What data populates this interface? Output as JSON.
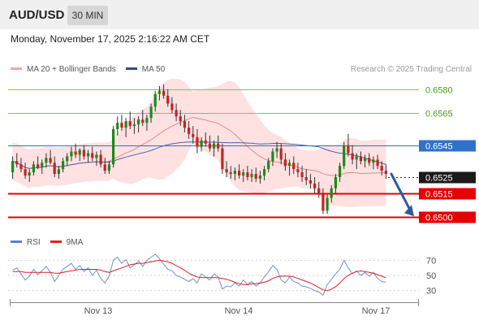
{
  "header": {
    "pair": "AUD/USD",
    "timeframe": "30 MIN",
    "timestamp": "Monday, November 17, 2025 2:16:22 AM CET"
  },
  "legend": {
    "bollinger_label": "MA 20 + Bollinger Bands",
    "ma50_label": "MA 50",
    "credit": "Research © 2025 Trading Central"
  },
  "rsi_legend": {
    "rsi_label": "RSI",
    "ma_label": "9MA"
  },
  "colors": {
    "candle_up": "#1a8a1a",
    "candle_down": "#cc1f1f",
    "bollinger_band": "#ffdcdc",
    "ma20": "#e08a8a",
    "ma50": "#4a63a8",
    "support": "#e60000",
    "pivot": "#2f72c9",
    "resistance": "#8dc24b",
    "last_price": "#1a1a1a",
    "forecast_arrow": "#2a5aa0",
    "rsi_line": "#6f8fd8",
    "rsi_ma": "#e02020"
  },
  "chart_data": [
    {
      "type": "candlestick",
      "title": "AUD/USD 30 MIN",
      "ylim": [
        0.6494,
        0.6586
      ],
      "x_tick_labels": [
        "Nov 13",
        "Nov 14",
        "Nov 17"
      ],
      "price_levels": [
        {
          "value": 0.658,
          "label": "0.6580",
          "kind": "resistance"
        },
        {
          "value": 0.6565,
          "label": "0.6565",
          "kind": "resistance"
        },
        {
          "value": 0.6545,
          "label": "0.6545",
          "kind": "pivot"
        },
        {
          "value": 0.6525,
          "label": "0.6525",
          "kind": "last"
        },
        {
          "value": 0.6515,
          "label": "0.6515",
          "kind": "support"
        },
        {
          "value": 0.65,
          "label": "0.6500",
          "kind": "support"
        }
      ],
      "forecast": {
        "direction": "down",
        "from": 0.6527,
        "to": 0.65
      },
      "ohlc": [
        [
          0.6528,
          0.6538,
          0.6524,
          0.6535
        ],
        [
          0.6535,
          0.654,
          0.6531,
          0.6533
        ],
        [
          0.6533,
          0.6537,
          0.6528,
          0.653
        ],
        [
          0.653,
          0.6534,
          0.6524,
          0.6526
        ],
        [
          0.6526,
          0.653,
          0.6522,
          0.6528
        ],
        [
          0.6528,
          0.6535,
          0.6526,
          0.6533
        ],
        [
          0.6533,
          0.6538,
          0.653,
          0.6531
        ],
        [
          0.6531,
          0.6536,
          0.6527,
          0.6534
        ],
        [
          0.6534,
          0.654,
          0.6531,
          0.6537
        ],
        [
          0.6537,
          0.6542,
          0.6533,
          0.6534
        ],
        [
          0.6534,
          0.6538,
          0.6525,
          0.6527
        ],
        [
          0.6527,
          0.6532,
          0.6524,
          0.653
        ],
        [
          0.653,
          0.6537,
          0.6528,
          0.6535
        ],
        [
          0.6535,
          0.654,
          0.6532,
          0.6538
        ],
        [
          0.6538,
          0.6544,
          0.6535,
          0.6541
        ],
        [
          0.6541,
          0.6546,
          0.6537,
          0.6539
        ],
        [
          0.6539,
          0.6543,
          0.6535,
          0.6542
        ],
        [
          0.6542,
          0.6545,
          0.6536,
          0.6538
        ],
        [
          0.6538,
          0.6542,
          0.6534,
          0.654
        ],
        [
          0.654,
          0.6544,
          0.6535,
          0.6537
        ],
        [
          0.6537,
          0.6541,
          0.6532,
          0.6539
        ],
        [
          0.6539,
          0.6542,
          0.6531,
          0.6533
        ],
        [
          0.6533,
          0.6537,
          0.6527,
          0.6529
        ],
        [
          0.6529,
          0.6535,
          0.6527,
          0.6533
        ],
        [
          0.6533,
          0.6557,
          0.6531,
          0.6555
        ],
        [
          0.6555,
          0.6563,
          0.6551,
          0.6559
        ],
        [
          0.6559,
          0.6564,
          0.6554,
          0.6556
        ],
        [
          0.6556,
          0.6562,
          0.655,
          0.656
        ],
        [
          0.656,
          0.6566,
          0.6555,
          0.6557
        ],
        [
          0.6557,
          0.6562,
          0.6552,
          0.6558
        ],
        [
          0.6558,
          0.6563,
          0.6553,
          0.6561
        ],
        [
          0.6561,
          0.6567,
          0.6557,
          0.6559
        ],
        [
          0.6559,
          0.6564,
          0.6554,
          0.6562
        ],
        [
          0.6562,
          0.6571,
          0.6559,
          0.6569
        ],
        [
          0.6569,
          0.6579,
          0.6566,
          0.6577
        ],
        [
          0.6577,
          0.6582,
          0.6573,
          0.6579
        ],
        [
          0.6579,
          0.6583,
          0.6574,
          0.6576
        ],
        [
          0.6576,
          0.658,
          0.6569,
          0.6571
        ],
        [
          0.6571,
          0.6575,
          0.6565,
          0.6567
        ],
        [
          0.6567,
          0.6571,
          0.656,
          0.6563
        ],
        [
          0.6563,
          0.6567,
          0.6557,
          0.656
        ],
        [
          0.656,
          0.6564,
          0.6553,
          0.6556
        ],
        [
          0.6556,
          0.656,
          0.6549,
          0.6552
        ],
        [
          0.6552,
          0.6557,
          0.6546,
          0.655
        ],
        [
          0.655,
          0.6555,
          0.654,
          0.6544
        ],
        [
          0.6544,
          0.655,
          0.6541,
          0.6548
        ],
        [
          0.6548,
          0.6553,
          0.6544,
          0.6546
        ],
        [
          0.6546,
          0.6551,
          0.6541,
          0.6543
        ],
        [
          0.6543,
          0.6548,
          0.6538,
          0.6546
        ],
        [
          0.6546,
          0.6551,
          0.6541,
          0.6543
        ],
        [
          0.6543,
          0.6546,
          0.6527,
          0.653
        ],
        [
          0.653,
          0.6535,
          0.6525,
          0.6528
        ],
        [
          0.6528,
          0.6532,
          0.6524,
          0.6527
        ],
        [
          0.6527,
          0.6531,
          0.6523,
          0.6529
        ],
        [
          0.6529,
          0.6533,
          0.6524,
          0.6526
        ],
        [
          0.6526,
          0.653,
          0.6522,
          0.6528
        ],
        [
          0.6528,
          0.6532,
          0.6523,
          0.6525
        ],
        [
          0.6525,
          0.653,
          0.6522,
          0.6527
        ],
        [
          0.6527,
          0.6531,
          0.6522,
          0.6524
        ],
        [
          0.6524,
          0.6529,
          0.6521,
          0.6526
        ],
        [
          0.6526,
          0.6532,
          0.6523,
          0.653
        ],
        [
          0.653,
          0.6537,
          0.6528,
          0.6535
        ],
        [
          0.6535,
          0.6543,
          0.6532,
          0.6541
        ],
        [
          0.6541,
          0.6547,
          0.6537,
          0.6543
        ],
        [
          0.6543,
          0.6546,
          0.6533,
          0.6536
        ],
        [
          0.6536,
          0.654,
          0.6529,
          0.6532
        ],
        [
          0.6532,
          0.6536,
          0.6526,
          0.6534
        ],
        [
          0.6534,
          0.6538,
          0.6527,
          0.653
        ],
        [
          0.653,
          0.6534,
          0.6525,
          0.6528
        ],
        [
          0.6528,
          0.6532,
          0.6522,
          0.6525
        ],
        [
          0.6525,
          0.653,
          0.652,
          0.6523
        ],
        [
          0.6523,
          0.6527,
          0.6518,
          0.6521
        ],
        [
          0.6521,
          0.6525,
          0.6515,
          0.6518
        ],
        [
          0.6518,
          0.6522,
          0.6512,
          0.6514
        ],
        [
          0.6514,
          0.6518,
          0.6502,
          0.6504
        ],
        [
          0.6504,
          0.6514,
          0.6502,
          0.6512
        ],
        [
          0.6512,
          0.652,
          0.6509,
          0.6518
        ],
        [
          0.6518,
          0.6527,
          0.6515,
          0.6525
        ],
        [
          0.6525,
          0.6534,
          0.6522,
          0.6532
        ],
        [
          0.6532,
          0.6547,
          0.653,
          0.6545
        ],
        [
          0.6545,
          0.6552,
          0.6538,
          0.654
        ],
        [
          0.654,
          0.6545,
          0.6533,
          0.6536
        ],
        [
          0.6536,
          0.654,
          0.653,
          0.6538
        ],
        [
          0.6538,
          0.6541,
          0.6533,
          0.6535
        ],
        [
          0.6535,
          0.6539,
          0.6531,
          0.6537
        ],
        [
          0.6537,
          0.654,
          0.6532,
          0.6534
        ],
        [
          0.6534,
          0.6538,
          0.653,
          0.6536
        ],
        [
          0.6536,
          0.6539,
          0.653,
          0.6532
        ],
        [
          0.6532,
          0.6535,
          0.6526,
          0.6529
        ],
        [
          0.6529,
          0.6533,
          0.6524,
          0.6527
        ]
      ]
    },
    {
      "type": "line",
      "title": "RSI",
      "ylim": [
        20,
        80
      ],
      "y_tick_labels": [
        "70",
        "50",
        "30"
      ],
      "series": [
        {
          "name": "RSI",
          "values": [
            57,
            60,
            52,
            44,
            49,
            58,
            51,
            56,
            62,
            54,
            42,
            50,
            58,
            62,
            66,
            58,
            63,
            55,
            60,
            50,
            57,
            46,
            40,
            49,
            70,
            74,
            66,
            71,
            60,
            64,
            69,
            62,
            70,
            74,
            78,
            72,
            65,
            58,
            56,
            50,
            48,
            45,
            42,
            46,
            40,
            52,
            48,
            44,
            52,
            48,
            32,
            36,
            35,
            40,
            36,
            44,
            38,
            42,
            36,
            40,
            48,
            55,
            63,
            58,
            44,
            40,
            48,
            42,
            40,
            36,
            35,
            33,
            30,
            28,
            24,
            38,
            45,
            52,
            58,
            70,
            60,
            52,
            56,
            50,
            54,
            49,
            54,
            46,
            42,
            41
          ]
        },
        {
          "name": "9MA",
          "values": [
            55,
            55,
            55,
            54,
            54,
            54,
            54,
            54,
            54,
            54,
            53,
            53,
            54,
            55,
            56,
            57,
            58,
            58,
            58,
            58,
            58,
            57,
            55,
            54,
            56,
            58,
            60,
            62,
            64,
            65,
            66,
            66,
            67,
            68,
            69,
            70,
            69,
            68,
            66,
            63,
            60,
            57,
            53,
            50,
            48,
            47,
            47,
            47,
            47,
            47,
            46,
            45,
            43,
            41,
            39,
            38,
            38,
            39,
            39,
            40,
            41,
            43,
            46,
            48,
            49,
            49,
            49,
            48,
            46,
            44,
            42,
            40,
            37,
            34,
            31,
            30,
            32,
            35,
            40,
            46,
            50,
            53,
            55,
            56,
            55,
            54,
            53,
            51,
            49,
            47
          ]
        }
      ]
    }
  ]
}
